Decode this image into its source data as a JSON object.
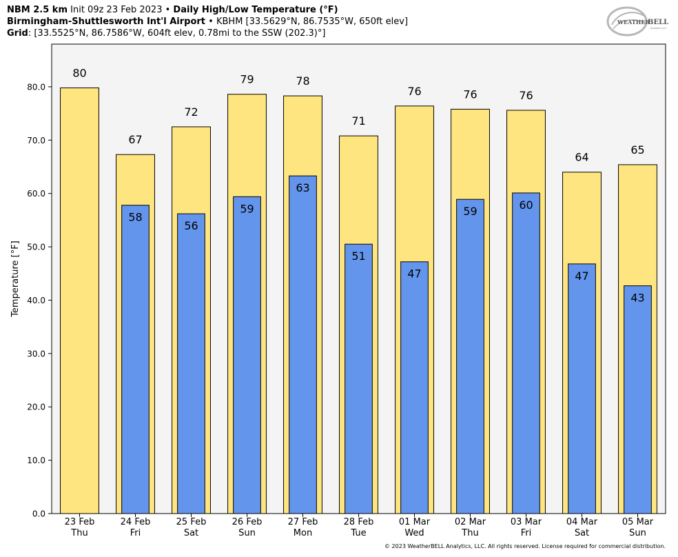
{
  "header": {
    "line1_model": "NBM 2.5 km",
    "line1_init": "Init 09z 23 Feb 2023",
    "line1_sep": "•",
    "line1_title": "Daily High/Low Temperature (°F)",
    "line2_station": "Birmingham-Shuttlesworth Int'l Airport",
    "line2_sep": "•",
    "line2_info": "KBHM [33.5629°N, 86.7535°W, 650ft elev]",
    "line3_label": "Grid",
    "line3_info": ": [33.5525°N, 86.7586°W, 604ft elev, 0.78mi to the SSW (202.3)°]"
  },
  "logo": {
    "text_weather": "WEATHER",
    "text_bell": "BELL",
    "sub": "Analytics LLC"
  },
  "footer": {
    "copyright": "© 2023 WeatherBELL Analytics, LLC. All rights reserved. License required for commercial distribution."
  },
  "colors": {
    "high_fill": "#ffe57f",
    "low_fill": "#6495ed",
    "plot_bg": "#f4f4f4",
    "outline": "#000000"
  },
  "chart_data": {
    "type": "bar",
    "ylabel": "Temperature [°F]",
    "ylim": [
      0,
      88
    ],
    "yticks": [
      "0.0",
      "10.0",
      "20.0",
      "30.0",
      "40.0",
      "50.0",
      "60.0",
      "70.0",
      "80.0"
    ],
    "categories": [
      [
        "23 Feb",
        "Thu"
      ],
      [
        "24 Feb",
        "Fri"
      ],
      [
        "25 Feb",
        "Sat"
      ],
      [
        "26 Feb",
        "Sun"
      ],
      [
        "27 Feb",
        "Mon"
      ],
      [
        "28 Feb",
        "Tue"
      ],
      [
        "01 Mar",
        "Wed"
      ],
      [
        "02 Mar",
        "Thu"
      ],
      [
        "03 Mar",
        "Fri"
      ],
      [
        "04 Mar",
        "Sat"
      ],
      [
        "05 Mar",
        "Sun"
      ]
    ],
    "series": [
      {
        "values": [
          79.8,
          67.3,
          72.5,
          78.6,
          78.3,
          70.8,
          76.4,
          75.8,
          75.6,
          64.0,
          65.4
        ],
        "labels": [
          "80",
          "67",
          "72",
          "79",
          "78",
          "71",
          "76",
          "76",
          "76",
          "64",
          "65"
        ]
      },
      {
        "values": [
          null,
          57.8,
          56.2,
          59.4,
          63.3,
          50.5,
          47.2,
          58.9,
          60.1,
          46.8,
          42.7
        ],
        "labels": [
          null,
          "58",
          "56",
          "59",
          "63",
          "51",
          "47",
          "59",
          "60",
          "47",
          "43"
        ]
      }
    ],
    "grid": false
  }
}
